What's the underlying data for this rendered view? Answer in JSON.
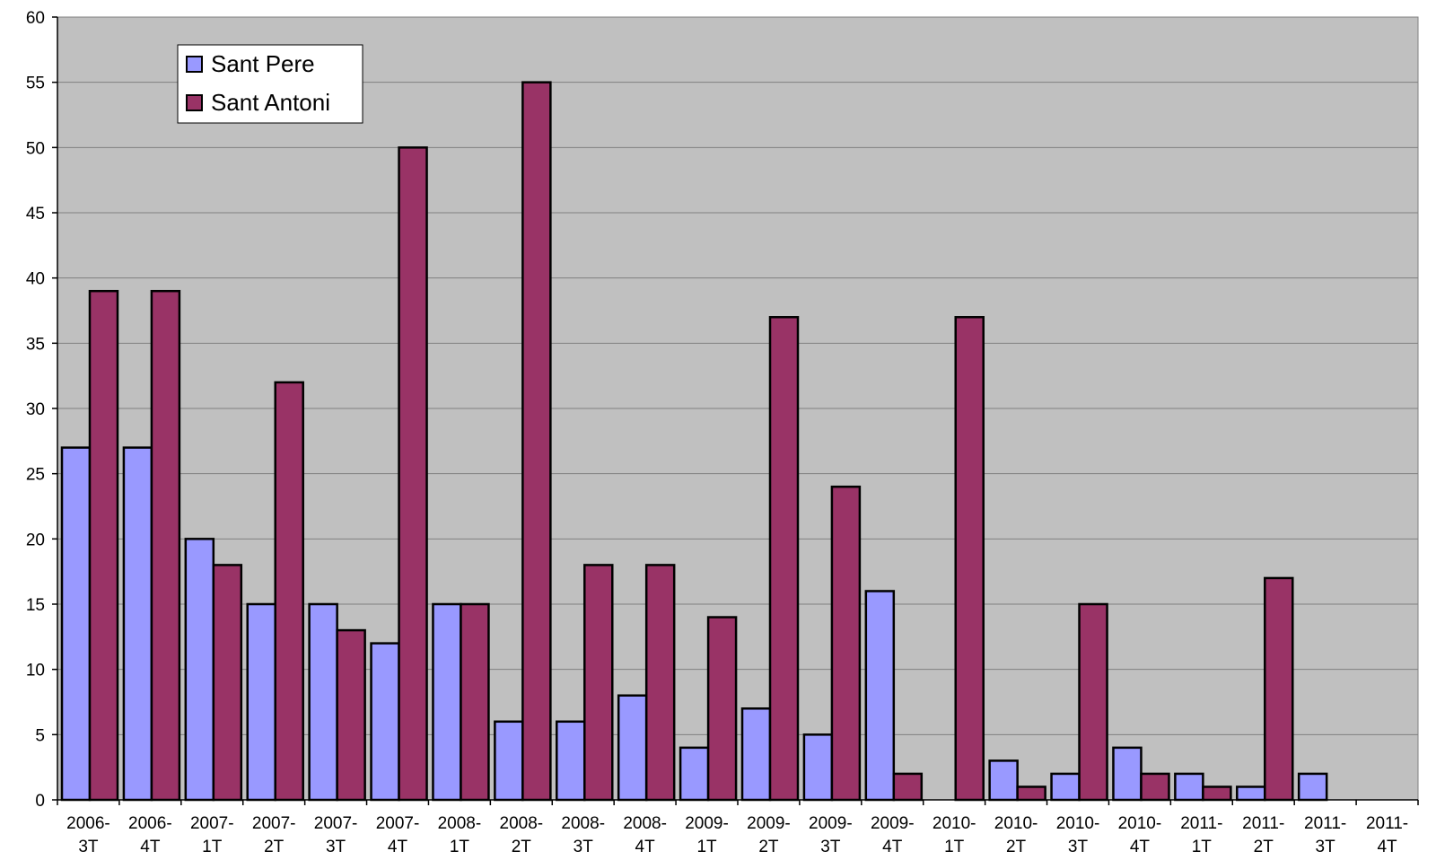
{
  "chart_data": {
    "type": "bar",
    "categories": [
      [
        "2006-",
        "3T"
      ],
      [
        "2006-",
        "4T"
      ],
      [
        "2007-",
        "1T"
      ],
      [
        "2007-",
        "2T"
      ],
      [
        "2007-",
        "3T"
      ],
      [
        "2007-",
        "4T"
      ],
      [
        "2008-",
        "1T"
      ],
      [
        "2008-",
        "2T"
      ],
      [
        "2008-",
        "3T"
      ],
      [
        "2008-",
        "4T"
      ],
      [
        "2009-",
        "1T"
      ],
      [
        "2009-",
        "2T"
      ],
      [
        "2009-",
        "3T"
      ],
      [
        "2009-",
        "4T"
      ],
      [
        "2010-",
        "1T"
      ],
      [
        "2010-",
        "2T"
      ],
      [
        "2010-",
        "3T"
      ],
      [
        "2010-",
        "4T"
      ],
      [
        "2011-",
        "1T"
      ],
      [
        "2011-",
        "2T"
      ],
      [
        "2011-",
        "3T"
      ],
      [
        "2011-",
        "4T"
      ]
    ],
    "series": [
      {
        "name": "Sant Pere",
        "color": "#9999ff",
        "values": [
          27,
          27,
          20,
          15,
          15,
          12,
          15,
          6,
          6,
          8,
          4,
          7,
          5,
          16,
          0,
          3,
          2,
          4,
          2,
          1,
          2,
          0
        ]
      },
      {
        "name": "Sant Antoni",
        "color": "#993366",
        "values": [
          39,
          39,
          18,
          32,
          13,
          50,
          15,
          55,
          18,
          18,
          14,
          37,
          24,
          2,
          37,
          1,
          15,
          2,
          1,
          17,
          0,
          0
        ]
      }
    ],
    "ylim": [
      0,
      60
    ],
    "yticks": [
      0,
      5,
      10,
      15,
      20,
      25,
      30,
      35,
      40,
      45,
      50,
      55,
      60
    ],
    "grid": true,
    "legend_position": "top-left",
    "plot_background": "#c0c0c0",
    "title": "",
    "xlabel": "",
    "ylabel": ""
  }
}
